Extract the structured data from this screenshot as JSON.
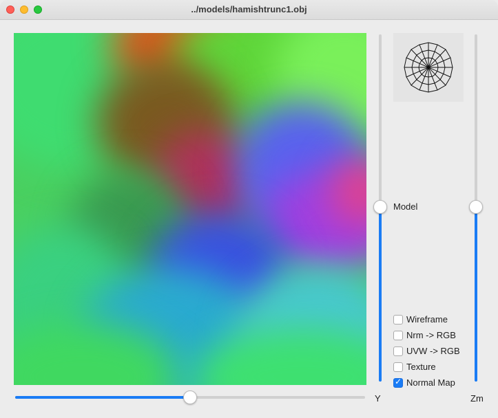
{
  "window": {
    "title": "../models/hamishtrunc1.obj"
  },
  "viewport": {
    "description_icon": "normal-map-render"
  },
  "sliders": {
    "model": {
      "label": "Model",
      "value_fraction": 0.51
    },
    "zoom": {
      "label": "Zm",
      "value_fraction": 0.51
    },
    "y": {
      "label": "Y",
      "value_fraction": 0.5
    }
  },
  "options": [
    {
      "label": "Wireframe",
      "checked": false
    },
    {
      "label": "Nrm -> RGB",
      "checked": false
    },
    {
      "label": "UVW -> RGB",
      "checked": false
    },
    {
      "label": "Texture",
      "checked": false
    },
    {
      "label": "Normal Map",
      "checked": true
    }
  ],
  "colors": {
    "accent": "#1a7cf5",
    "track": "#d0d0d0"
  }
}
